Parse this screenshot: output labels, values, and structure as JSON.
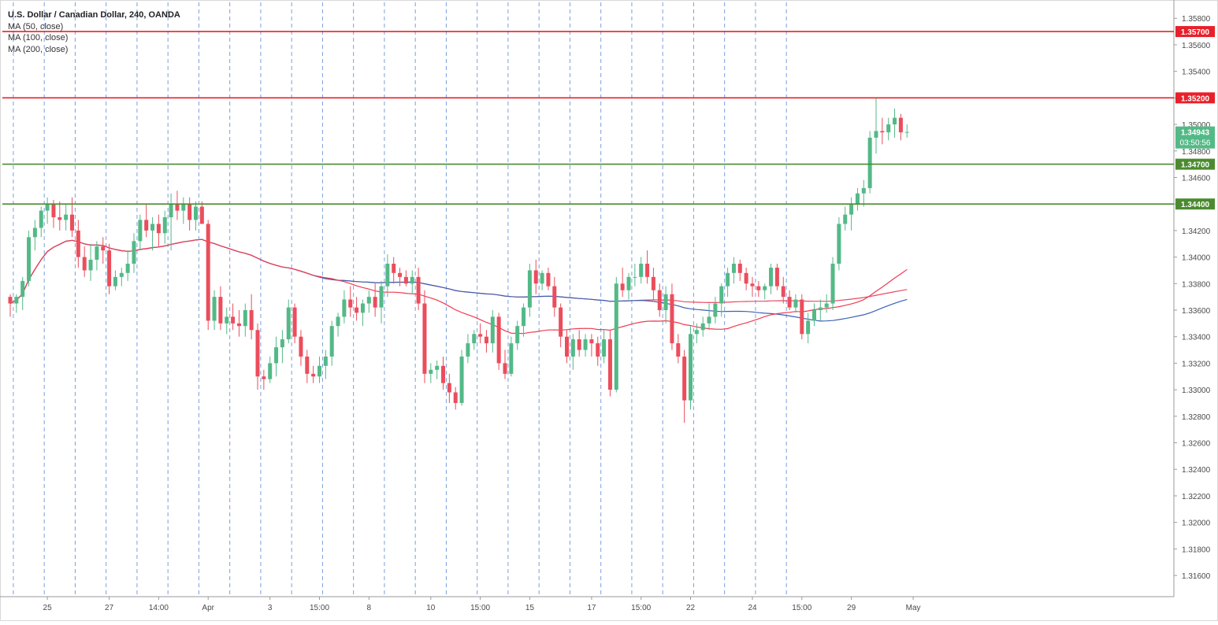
{
  "header": {
    "title": "U.S. Dollar / Canadian Dollar, 240, OANDA",
    "indicators": [
      "MA (50, close)",
      "MA (100, close)",
      "MA (200, close)"
    ]
  },
  "colors": {
    "up": "#53b987",
    "down": "#eb4d5c",
    "resistance": "#e8202a",
    "support": "#4b8b2f",
    "ma50": "#ef3b51",
    "ma100": "#3c62b3",
    "ma200": "#e94b63",
    "session_line": "#4d7fd3",
    "axis_text": "#4a4a4a",
    "price_tag": "#53b987"
  },
  "chart_data": {
    "type": "candlestick",
    "title": "U.S. Dollar / Canadian Dollar, 240, OANDA",
    "ylim": [
      1.3144,
      1.3592
    ],
    "y_ticks": [
      "1.35800",
      "1.35600",
      "1.35400",
      "1.35200",
      "1.35000",
      "1.34800",
      "1.34600",
      "1.34400",
      "1.34200",
      "1.34000",
      "1.33800",
      "1.33600",
      "1.33400",
      "1.33200",
      "1.33000",
      "1.32800",
      "1.32600",
      "1.32400",
      "1.32200",
      "1.32000",
      "1.31800",
      "1.31600"
    ],
    "x_ticks": [
      {
        "bar": 6,
        "label": "25"
      },
      {
        "bar": 16,
        "label": "27"
      },
      {
        "bar": 24,
        "label": "14:00"
      },
      {
        "bar": 32,
        "label": "Apr"
      },
      {
        "bar": 42,
        "label": "3"
      },
      {
        "bar": 50,
        "label": "15:00"
      },
      {
        "bar": 58,
        "label": "8"
      },
      {
        "bar": 68,
        "label": "10"
      },
      {
        "bar": 76,
        "label": "15:00"
      },
      {
        "bar": 84,
        "label": "15"
      },
      {
        "bar": 94,
        "label": "17"
      },
      {
        "bar": 102,
        "label": "15:00"
      },
      {
        "bar": 110,
        "label": "22"
      },
      {
        "bar": 120,
        "label": "24"
      },
      {
        "bar": 128,
        "label": "15:00"
      },
      {
        "bar": 136,
        "label": "29"
      },
      {
        "bar": 146,
        "label": "May"
      }
    ],
    "session_bars": [
      0.5,
      5.5,
      10.5,
      15.5,
      20.5,
      25.5,
      30.5,
      35.5,
      40.5,
      45.5,
      50.5,
      55.5,
      60.5,
      65.5,
      70.5,
      75.5,
      80.5,
      85.5,
      90.5,
      95.5,
      100.5,
      105.5,
      110.5,
      115.5,
      120.5,
      125.5
    ],
    "levels": [
      {
        "label": "1.35700",
        "value": 1.357,
        "kind": "resistance"
      },
      {
        "label": "1.35200",
        "value": 1.352,
        "kind": "resistance"
      },
      {
        "label": "1.34700",
        "value": 1.347,
        "kind": "support"
      },
      {
        "label": "1.34400",
        "value": 1.344,
        "kind": "support"
      }
    ],
    "last_price": {
      "label": "1.34943",
      "value": 1.34943,
      "countdown": "03:50:56"
    },
    "candles": [
      [
        1.337,
        1.3372,
        1.3355,
        1.3365
      ],
      [
        1.3365,
        1.3372,
        1.3358,
        1.337
      ],
      [
        1.337,
        1.3385,
        1.336,
        1.3382
      ],
      [
        1.3382,
        1.342,
        1.3378,
        1.3415
      ],
      [
        1.3415,
        1.3428,
        1.3405,
        1.3422
      ],
      [
        1.3422,
        1.3438,
        1.3415,
        1.3435
      ],
      [
        1.3435,
        1.3445,
        1.3425,
        1.344
      ],
      [
        1.344,
        1.3443,
        1.3422,
        1.343
      ],
      [
        1.343,
        1.3442,
        1.342,
        1.3428
      ],
      [
        1.3428,
        1.344,
        1.342,
        1.3432
      ],
      [
        1.3432,
        1.3445,
        1.3415,
        1.342
      ],
      [
        1.342,
        1.3428,
        1.3392,
        1.34
      ],
      [
        1.34,
        1.3408,
        1.3385,
        1.339
      ],
      [
        1.339,
        1.341,
        1.3382,
        1.3398
      ],
      [
        1.3398,
        1.3412,
        1.339,
        1.3408
      ],
      [
        1.3408,
        1.3415,
        1.3395,
        1.3405
      ],
      [
        1.3405,
        1.341,
        1.3372,
        1.3378
      ],
      [
        1.3378,
        1.339,
        1.3375,
        1.3385
      ],
      [
        1.3385,
        1.3392,
        1.3378,
        1.3388
      ],
      [
        1.3388,
        1.3405,
        1.3382,
        1.3395
      ],
      [
        1.3395,
        1.3418,
        1.3388,
        1.3412
      ],
      [
        1.3412,
        1.3432,
        1.3405,
        1.3428
      ],
      [
        1.3428,
        1.344,
        1.3415,
        1.342
      ],
      [
        1.342,
        1.343,
        1.3405,
        1.3425
      ],
      [
        1.3425,
        1.3432,
        1.3408,
        1.3418
      ],
      [
        1.3418,
        1.3435,
        1.341,
        1.343
      ],
      [
        1.343,
        1.3448,
        1.3405,
        1.344
      ],
      [
        1.344,
        1.345,
        1.3428,
        1.3435
      ],
      [
        1.3435,
        1.3445,
        1.3425,
        1.344
      ],
      [
        1.344,
        1.3445,
        1.342,
        1.3428
      ],
      [
        1.3428,
        1.3442,
        1.342,
        1.3438
      ],
      [
        1.3438,
        1.3442,
        1.3425,
        1.3425
      ],
      [
        1.3425,
        1.3428,
        1.3345,
        1.3352
      ],
      [
        1.3352,
        1.3375,
        1.3345,
        1.337
      ],
      [
        1.337,
        1.3378,
        1.3345,
        1.335
      ],
      [
        1.335,
        1.3362,
        1.3342,
        1.3355
      ],
      [
        1.3355,
        1.3365,
        1.3345,
        1.335
      ],
      [
        1.335,
        1.336,
        1.334,
        1.3348
      ],
      [
        1.3348,
        1.3365,
        1.334,
        1.336
      ],
      [
        1.336,
        1.3372,
        1.3338,
        1.3345
      ],
      [
        1.3345,
        1.335,
        1.33,
        1.331
      ],
      [
        1.331,
        1.3315,
        1.33,
        1.3308
      ],
      [
        1.3308,
        1.3325,
        1.3305,
        1.332
      ],
      [
        1.332,
        1.334,
        1.331,
        1.3332
      ],
      [
        1.3332,
        1.3345,
        1.332,
        1.3338
      ],
      [
        1.3338,
        1.3368,
        1.3335,
        1.3362
      ],
      [
        1.3362,
        1.3365,
        1.3335,
        1.334
      ],
      [
        1.334,
        1.3345,
        1.3318,
        1.3325
      ],
      [
        1.3325,
        1.333,
        1.3305,
        1.3312
      ],
      [
        1.3312,
        1.3318,
        1.3305,
        1.331
      ],
      [
        1.331,
        1.3325,
        1.3305,
        1.3318
      ],
      [
        1.3318,
        1.333,
        1.3308,
        1.3325
      ],
      [
        1.3325,
        1.3352,
        1.3318,
        1.3348
      ],
      [
        1.3348,
        1.3358,
        1.334,
        1.3355
      ],
      [
        1.3355,
        1.3375,
        1.335,
        1.3368
      ],
      [
        1.3368,
        1.3378,
        1.3355,
        1.3362
      ],
      [
        1.3362,
        1.337,
        1.3352,
        1.3358
      ],
      [
        1.3358,
        1.3368,
        1.3348,
        1.3365
      ],
      [
        1.3365,
        1.3375,
        1.3358,
        1.337
      ],
      [
        1.337,
        1.338,
        1.3355,
        1.3362
      ],
      [
        1.3362,
        1.3382,
        1.335,
        1.3378
      ],
      [
        1.3378,
        1.3402,
        1.337,
        1.3395
      ],
      [
        1.3395,
        1.34,
        1.338,
        1.3388
      ],
      [
        1.3388,
        1.3392,
        1.3378,
        1.3385
      ],
      [
        1.3385,
        1.339,
        1.3378,
        1.338
      ],
      [
        1.338,
        1.339,
        1.3372,
        1.3385
      ],
      [
        1.3385,
        1.3392,
        1.336,
        1.3365
      ],
      [
        1.3365,
        1.3375,
        1.3305,
        1.3312
      ],
      [
        1.3312,
        1.332,
        1.3305,
        1.3315
      ],
      [
        1.3315,
        1.3322,
        1.3308,
        1.3318
      ],
      [
        1.3318,
        1.3325,
        1.33,
        1.3305
      ],
      [
        1.3305,
        1.3312,
        1.329,
        1.3298
      ],
      [
        1.3298,
        1.3302,
        1.3285,
        1.329
      ],
      [
        1.329,
        1.333,
        1.3288,
        1.3325
      ],
      [
        1.3325,
        1.3342,
        1.332,
        1.3335
      ],
      [
        1.3335,
        1.3345,
        1.333,
        1.3342
      ],
      [
        1.3342,
        1.335,
        1.3335,
        1.334
      ],
      [
        1.334,
        1.3345,
        1.3328,
        1.3335
      ],
      [
        1.3335,
        1.336,
        1.3328,
        1.3355
      ],
      [
        1.3355,
        1.3358,
        1.3315,
        1.332
      ],
      [
        1.332,
        1.333,
        1.3308,
        1.3312
      ],
      [
        1.3312,
        1.334,
        1.331,
        1.3335
      ],
      [
        1.3335,
        1.3352,
        1.333,
        1.3348
      ],
      [
        1.3348,
        1.3365,
        1.334,
        1.3362
      ],
      [
        1.3362,
        1.3395,
        1.3355,
        1.339
      ],
      [
        1.339,
        1.3398,
        1.3372,
        1.338
      ],
      [
        1.338,
        1.339,
        1.3375,
        1.3388
      ],
      [
        1.3388,
        1.3392,
        1.3375,
        1.3378
      ],
      [
        1.3378,
        1.3385,
        1.3355,
        1.3362
      ],
      [
        1.3362,
        1.3365,
        1.3332,
        1.334
      ],
      [
        1.334,
        1.3345,
        1.332,
        1.3325
      ],
      [
        1.3325,
        1.3342,
        1.3315,
        1.3338
      ],
      [
        1.3338,
        1.3345,
        1.3325,
        1.333
      ],
      [
        1.333,
        1.3342,
        1.3325,
        1.3338
      ],
      [
        1.3338,
        1.3342,
        1.3325,
        1.3335
      ],
      [
        1.3335,
        1.334,
        1.3318,
        1.3325
      ],
      [
        1.3325,
        1.3345,
        1.332,
        1.3338
      ],
      [
        1.3338,
        1.3345,
        1.3295,
        1.33
      ],
      [
        1.33,
        1.3385,
        1.3298,
        1.338
      ],
      [
        1.338,
        1.3392,
        1.337,
        1.3375
      ],
      [
        1.3375,
        1.3388,
        1.3368,
        1.3385
      ],
      [
        1.3385,
        1.3395,
        1.3378,
        1.3385
      ],
      [
        1.3385,
        1.34,
        1.338,
        1.3395
      ],
      [
        1.3395,
        1.3405,
        1.338,
        1.3385
      ],
      [
        1.3385,
        1.3392,
        1.3368,
        1.3375
      ],
      [
        1.3375,
        1.338,
        1.3355,
        1.336
      ],
      [
        1.336,
        1.3378,
        1.335,
        1.3372
      ],
      [
        1.3372,
        1.338,
        1.333,
        1.3335
      ],
      [
        1.3335,
        1.3342,
        1.332,
        1.3325
      ],
      [
        1.3325,
        1.333,
        1.3275,
        1.3292
      ],
      [
        1.3292,
        1.3348,
        1.3285,
        1.3342
      ],
      [
        1.3342,
        1.335,
        1.3335,
        1.3345
      ],
      [
        1.3345,
        1.3355,
        1.334,
        1.335
      ],
      [
        1.335,
        1.3365,
        1.3345,
        1.3355
      ],
      [
        1.3355,
        1.337,
        1.335,
        1.3365
      ],
      [
        1.3365,
        1.338,
        1.3355,
        1.3378
      ],
      [
        1.3378,
        1.3392,
        1.337,
        1.3388
      ],
      [
        1.3388,
        1.34,
        1.338,
        1.3395
      ],
      [
        1.3395,
        1.3398,
        1.3382,
        1.3388
      ],
      [
        1.3388,
        1.3392,
        1.3375,
        1.338
      ],
      [
        1.338,
        1.3385,
        1.337,
        1.3378
      ],
      [
        1.3378,
        1.3382,
        1.337,
        1.3375
      ],
      [
        1.3375,
        1.338,
        1.3368,
        1.3378
      ],
      [
        1.3378,
        1.3395,
        1.3372,
        1.3392
      ],
      [
        1.3392,
        1.3395,
        1.3375,
        1.3378
      ],
      [
        1.3378,
        1.3385,
        1.3365,
        1.337
      ],
      [
        1.337,
        1.3375,
        1.336,
        1.3362
      ],
      [
        1.3362,
        1.3372,
        1.3358,
        1.3368
      ],
      [
        1.3368,
        1.3372,
        1.3338,
        1.3342
      ],
      [
        1.3342,
        1.3358,
        1.3335,
        1.3352
      ],
      [
        1.3352,
        1.3365,
        1.3348,
        1.336
      ],
      [
        1.336,
        1.3368,
        1.3352,
        1.3362
      ],
      [
        1.3362,
        1.3372,
        1.3358,
        1.3365
      ],
      [
        1.3365,
        1.34,
        1.336,
        1.3395
      ],
      [
        1.3395,
        1.343,
        1.339,
        1.3425
      ],
      [
        1.3425,
        1.3438,
        1.342,
        1.3432
      ],
      [
        1.3432,
        1.3445,
        1.342,
        1.344
      ],
      [
        1.344,
        1.3452,
        1.3435,
        1.3448
      ],
      [
        1.3448,
        1.3458,
        1.3438,
        1.3452
      ],
      [
        1.3452,
        1.3495,
        1.3448,
        1.349
      ],
      [
        1.349,
        1.352,
        1.3478,
        1.3495
      ],
      [
        1.3495,
        1.3505,
        1.3485,
        1.3494
      ],
      [
        1.3494,
        1.3505,
        1.3488,
        1.35
      ],
      [
        1.35,
        1.3512,
        1.349,
        1.3505
      ],
      [
        1.3505,
        1.3508,
        1.3488,
        1.3494
      ],
      [
        1.3494,
        1.35,
        1.349,
        1.34943
      ]
    ]
  }
}
